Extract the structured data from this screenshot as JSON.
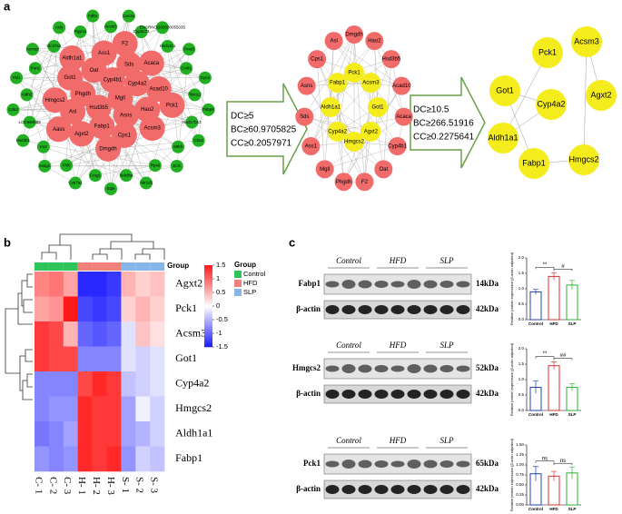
{
  "panel_a": {
    "label": "a",
    "networks": [
      {
        "core_color": "#f26b6b",
        "other_color": "#22b022",
        "core_nodes": [
          "Mgll",
          "Hsd3b5",
          "Cyp4b1",
          "Asns",
          "Phgdh",
          "Cyp4a2",
          "Fabp1",
          "Oat",
          "Hao2",
          "Asl",
          "Sds",
          "Cps1",
          "Got1",
          "Acad10",
          "Agxt2",
          "Ass1",
          "Acsm3",
          "Hmgcs2",
          "Acaca",
          "Dmgdh",
          "Aldh1a1",
          "Pck1",
          "Aass",
          "F2"
        ],
        "other_nodes": [
          "Acsm5",
          "Ces2a",
          "Cyp2c23",
          "ENSRNOG00000055035",
          "Hsd11b1",
          "Fmo5",
          "Ccnl1",
          "Gys2",
          "Rbm12",
          "Fkbp5",
          "Hsd17b13",
          "Cbs2",
          "Mthfr",
          "Ecl1",
          "Rps6",
          "Akr1d1",
          "Bckdha",
          "Sqle",
          "Creg1",
          "Cyp7a1",
          "Fhl0",
          "Insig1",
          "Irs2",
          "Hsd3b1",
          "LOC684988",
          "Cdk2",
          "Aldh2",
          "Fhl1",
          "Pon1",
          "Acmsd",
          "Slc37a2",
          "Acly",
          "Pgp1a",
          "Fdft1"
        ]
      },
      {
        "core_color": "#f5ec1e",
        "other_color": "#f26b6b",
        "core_nodes": [
          "Pck1",
          "Acsm3",
          "Got1",
          "Agxt2",
          "Hmgcs2",
          "Cyp4a2",
          "Aldh1a1",
          "Fabp1"
        ],
        "other_nodes": [
          "Dmgdh",
          "Hao2",
          "Hsd3b5",
          "Acad10",
          "Acaca",
          "Cyp4b1",
          "Oat",
          "F2",
          "Phgdh",
          "Mgll",
          "Ass1",
          "Sds",
          "Asns",
          "Cps1",
          "Asl"
        ]
      },
      {
        "core_color": "#f5ec1e",
        "other_color": "#f26b6b",
        "core_nodes": [
          "Pck1",
          "Acsm3",
          "Got1",
          "Cyp4a2",
          "Agxt2",
          "Aldh1a1",
          "Fabp1",
          "Hmgcs2"
        ],
        "other_nodes": []
      }
    ],
    "filters": [
      {
        "lines": [
          "DC≥5",
          "BC≥60.9705825",
          "CC≥0.2057971"
        ]
      },
      {
        "lines": [
          "DC≥10.5",
          "BC≥266.51916",
          "CC≥0.2275641"
        ]
      }
    ]
  },
  "panel_b": {
    "label": "b"
  },
  "panel_c": {
    "label": "c",
    "blots": [
      {
        "groups": [
          "Control",
          "HFD",
          "SLP"
        ],
        "target": "Fabp1",
        "target_kda": "14kDa",
        "control": "β-actin",
        "control_kda": "42kDa"
      },
      {
        "groups": [
          "Control",
          "HFD",
          "SLP"
        ],
        "target": "Hmgcs2",
        "target_kda": "52kDa",
        "control": "β-actin",
        "control_kda": "42kDa"
      },
      {
        "groups": [
          "Control",
          "HFD",
          "SLP"
        ],
        "target": "Pck1",
        "target_kda": "65kDa",
        "control": "β-actin",
        "control_kda": "42kDa"
      }
    ]
  },
  "chart_data": [
    {
      "type": "heatmap",
      "rows": [
        "Agxt2",
        "Pck1",
        "Acsm3",
        "Got1",
        "Cyp4a2",
        "Hmgcs2",
        "Aldh1a1",
        "Fabp1"
      ],
      "columns": [
        "C- 1",
        "C- 2",
        "C- 3",
        "H- 1",
        "H- 2",
        "H- 3",
        "S- 1",
        "S- 2",
        "S- 3"
      ],
      "values": [
        [
          0.8,
          0.9,
          0.6,
          -1.4,
          -1.4,
          -1.3,
          0.5,
          0.3,
          0.4
        ],
        [
          0.6,
          0.7,
          1.5,
          -1.2,
          -1.3,
          -1.2,
          0.3,
          0.5,
          0.3
        ],
        [
          1.3,
          1.2,
          0.5,
          -1.0,
          -1.1,
          -1.0,
          -0.2,
          0.4,
          0.2
        ],
        [
          1.3,
          1.2,
          1.2,
          -0.8,
          -0.8,
          -0.8,
          -0.2,
          -0.3,
          -0.2
        ],
        [
          -0.8,
          -0.8,
          -0.8,
          1.2,
          1.4,
          1.3,
          -0.4,
          -0.3,
          -0.2
        ],
        [
          -0.8,
          -0.7,
          -0.7,
          1.4,
          1.3,
          1.3,
          -0.6,
          -0.1,
          -0.3
        ],
        [
          -0.9,
          -0.8,
          -0.6,
          1.4,
          1.3,
          1.3,
          -0.6,
          -0.5,
          -0.3
        ],
        [
          -0.7,
          -0.8,
          -0.7,
          1.4,
          1.3,
          1.4,
          -0.7,
          -0.3,
          -0.4
        ]
      ],
      "annotation_label": "Group",
      "clim": [
        -1.5,
        1.5
      ],
      "cticks": [
        1.5,
        1,
        0.5,
        0,
        -0.5,
        -1,
        -1.5
      ],
      "colors": [
        "#1a1aff",
        "#ffffff",
        "#ff1a1a"
      ],
      "legend": {
        "title": "Group",
        "groups": [
          {
            "name": "Control",
            "color": "#2ec45a"
          },
          {
            "name": "HFD",
            "color": "#f0807a"
          },
          {
            "name": "SLP",
            "color": "#86b6e8"
          }
        ]
      }
    },
    {
      "type": "bar",
      "categories": [
        "Control",
        "HFD",
        "SLP"
      ],
      "values": [
        0.9,
        1.4,
        1.12
      ],
      "errors": [
        0.08,
        0.12,
        0.15
      ],
      "colors": [
        "#1f3fbf",
        "#e03030",
        "#30b030"
      ],
      "ylim": [
        0,
        2
      ],
      "yticks": [
        {
          "value": 0,
          "label": "0.0"
        },
        0.5,
        {
          "value": 1,
          "label": "1.0"
        },
        1.5,
        {
          "value": 2,
          "label": "2.0"
        }
      ],
      "ylabel": "Relative protein expression (β-actin adjusted)",
      "annotations": [
        "**",
        "#"
      ]
    },
    {
      "type": "bar",
      "categories": [
        "Control",
        "HFD",
        "SLP"
      ],
      "values": [
        0.75,
        1.45,
        0.75
      ],
      "errors": [
        0.2,
        0.12,
        0.12
      ],
      "colors": [
        "#1f3fbf",
        "#e03030",
        "#30b030"
      ],
      "ylim": [
        0,
        2
      ],
      "yticks": [
        {
          "value": 0,
          "label": "0.0"
        },
        0.5,
        {
          "value": 1,
          "label": "1.0"
        },
        1.5,
        {
          "value": 2,
          "label": "2.0"
        }
      ],
      "ylabel": "Relative protein expression (β-actin adjusted)",
      "annotations": [
        "**",
        "##"
      ]
    },
    {
      "type": "bar",
      "categories": [
        "Control",
        "HFD",
        "SLP"
      ],
      "values": [
        0.78,
        0.72,
        0.8
      ],
      "errors": [
        0.18,
        0.12,
        0.15
      ],
      "colors": [
        "#1f3fbf",
        "#e03030",
        "#30b030"
      ],
      "ylim": [
        0,
        1.5
      ],
      "yticks": [
        {
          "value": 0,
          "label": "0.00"
        },
        {
          "value": 0.25,
          "label": "0.25"
        },
        {
          "value": 0.5,
          "label": "0.50"
        },
        {
          "value": 0.75,
          "label": "0.75"
        },
        {
          "value": 1,
          "label": "1.00"
        },
        {
          "value": 1.25,
          "label": "1.25"
        },
        {
          "value": 1.5,
          "label": "1.50"
        }
      ],
      "ylabel": "Relative protein expression (β-actin adjusted)",
      "annotations": [
        "ns",
        "ns"
      ]
    }
  ]
}
